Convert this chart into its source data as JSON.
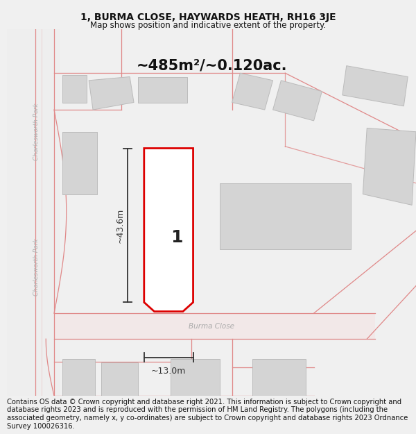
{
  "title": "1, BURMA CLOSE, HAYWARDS HEATH, RH16 3JE",
  "subtitle": "Map shows position and indicative extent of the property.",
  "footer": "Contains OS data © Crown copyright and database right 2021. This information is subject to Crown copyright and database rights 2023 and is reproduced with the permission of HM Land Registry. The polygons (including the associated geometry, namely x, y co-ordinates) are subject to Crown copyright and database rights 2023 Ordnance Survey 100026316.",
  "area_label": "~485m²/~0.120ac.",
  "plot_number": "1",
  "width_label": "~13.0m",
  "height_label": "~43.6m",
  "street_label": "Burma Close",
  "road_label_upper": "Charlesworth Park",
  "road_label_lower": "Charlesworth Park",
  "title_fontsize": 10,
  "subtitle_fontsize": 8.5,
  "footer_fontsize": 7.2,
  "area_fontsize": 15,
  "plot_num_fontsize": 18,
  "dim_fontsize": 9,
  "street_fontsize": 7.5,
  "road_label_fontsize": 6.5,
  "bg_color": "#f0f0f0",
  "map_bg": "#f7f7f7",
  "building_fc": "#d4d4d4",
  "building_ec": "#bbbbbb",
  "road_fill": "#f2e8e8",
  "road_ec": "#e08888",
  "plot_ec": "#dd0000",
  "plot_fc": "#ffffff",
  "dim_color": "#333333",
  "text_color": "#111111",
  "street_color": "#aaaaaa",
  "road_label_color": "#b0b0b0"
}
